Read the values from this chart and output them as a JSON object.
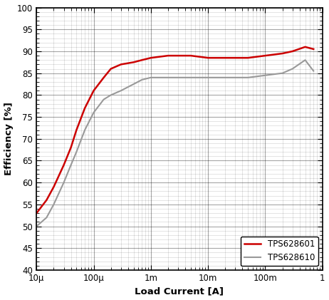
{
  "title": "",
  "xlabel": "Load Current [A]",
  "ylabel": "Efficiency [%]",
  "xlim": [
    1e-05,
    1.0
  ],
  "ylim": [
    40,
    100
  ],
  "yticks": [
    40,
    45,
    50,
    55,
    60,
    65,
    70,
    75,
    80,
    85,
    90,
    95,
    100
  ],
  "series": [
    {
      "label": "TPS628601",
      "color": "#cc0000",
      "linewidth": 1.8,
      "x": [
        1e-05,
        1.5e-05,
        2e-05,
        3e-05,
        4e-05,
        5e-05,
        7e-05,
        0.0001,
        0.00015,
        0.0002,
        0.0003,
        0.0005,
        0.0007,
        0.001,
        0.002,
        0.005,
        0.01,
        0.02,
        0.05,
        0.1,
        0.2,
        0.3,
        0.5,
        0.7
      ],
      "y": [
        53,
        56,
        59,
        64,
        68,
        72,
        77,
        81,
        84,
        86,
        87,
        87.5,
        88,
        88.5,
        89,
        89,
        88.5,
        88.5,
        88.5,
        89,
        89.5,
        90,
        91,
        90.5
      ]
    },
    {
      "label": "TPS628610",
      "color": "#999999",
      "linewidth": 1.5,
      "x": [
        1e-05,
        1.5e-05,
        2e-05,
        3e-05,
        4e-05,
        5e-05,
        7e-05,
        0.0001,
        0.00015,
        0.0002,
        0.0003,
        0.0005,
        0.0007,
        0.001,
        0.002,
        0.005,
        0.01,
        0.02,
        0.05,
        0.1,
        0.2,
        0.3,
        0.5,
        0.7
      ],
      "y": [
        50,
        52,
        55,
        60,
        64,
        67,
        72,
        76,
        79,
        80,
        81,
        82.5,
        83.5,
        84,
        84,
        84,
        84,
        84,
        84,
        84.5,
        85,
        86,
        88,
        85.5
      ]
    }
  ],
  "legend_loc": "lower right",
  "grid_major_color": "#000000",
  "grid_minor_color": "#000000",
  "grid_major_alpha": 0.35,
  "grid_minor_alpha": 0.15,
  "xtick_labels": [
    "10μ",
    "100μ",
    "1m",
    "10m",
    "100m",
    "1"
  ],
  "xtick_positions": [
    1e-05,
    0.0001,
    0.001,
    0.01,
    0.1,
    1.0
  ],
  "figsize": [
    4.62,
    4.21
  ],
  "dpi": 100
}
